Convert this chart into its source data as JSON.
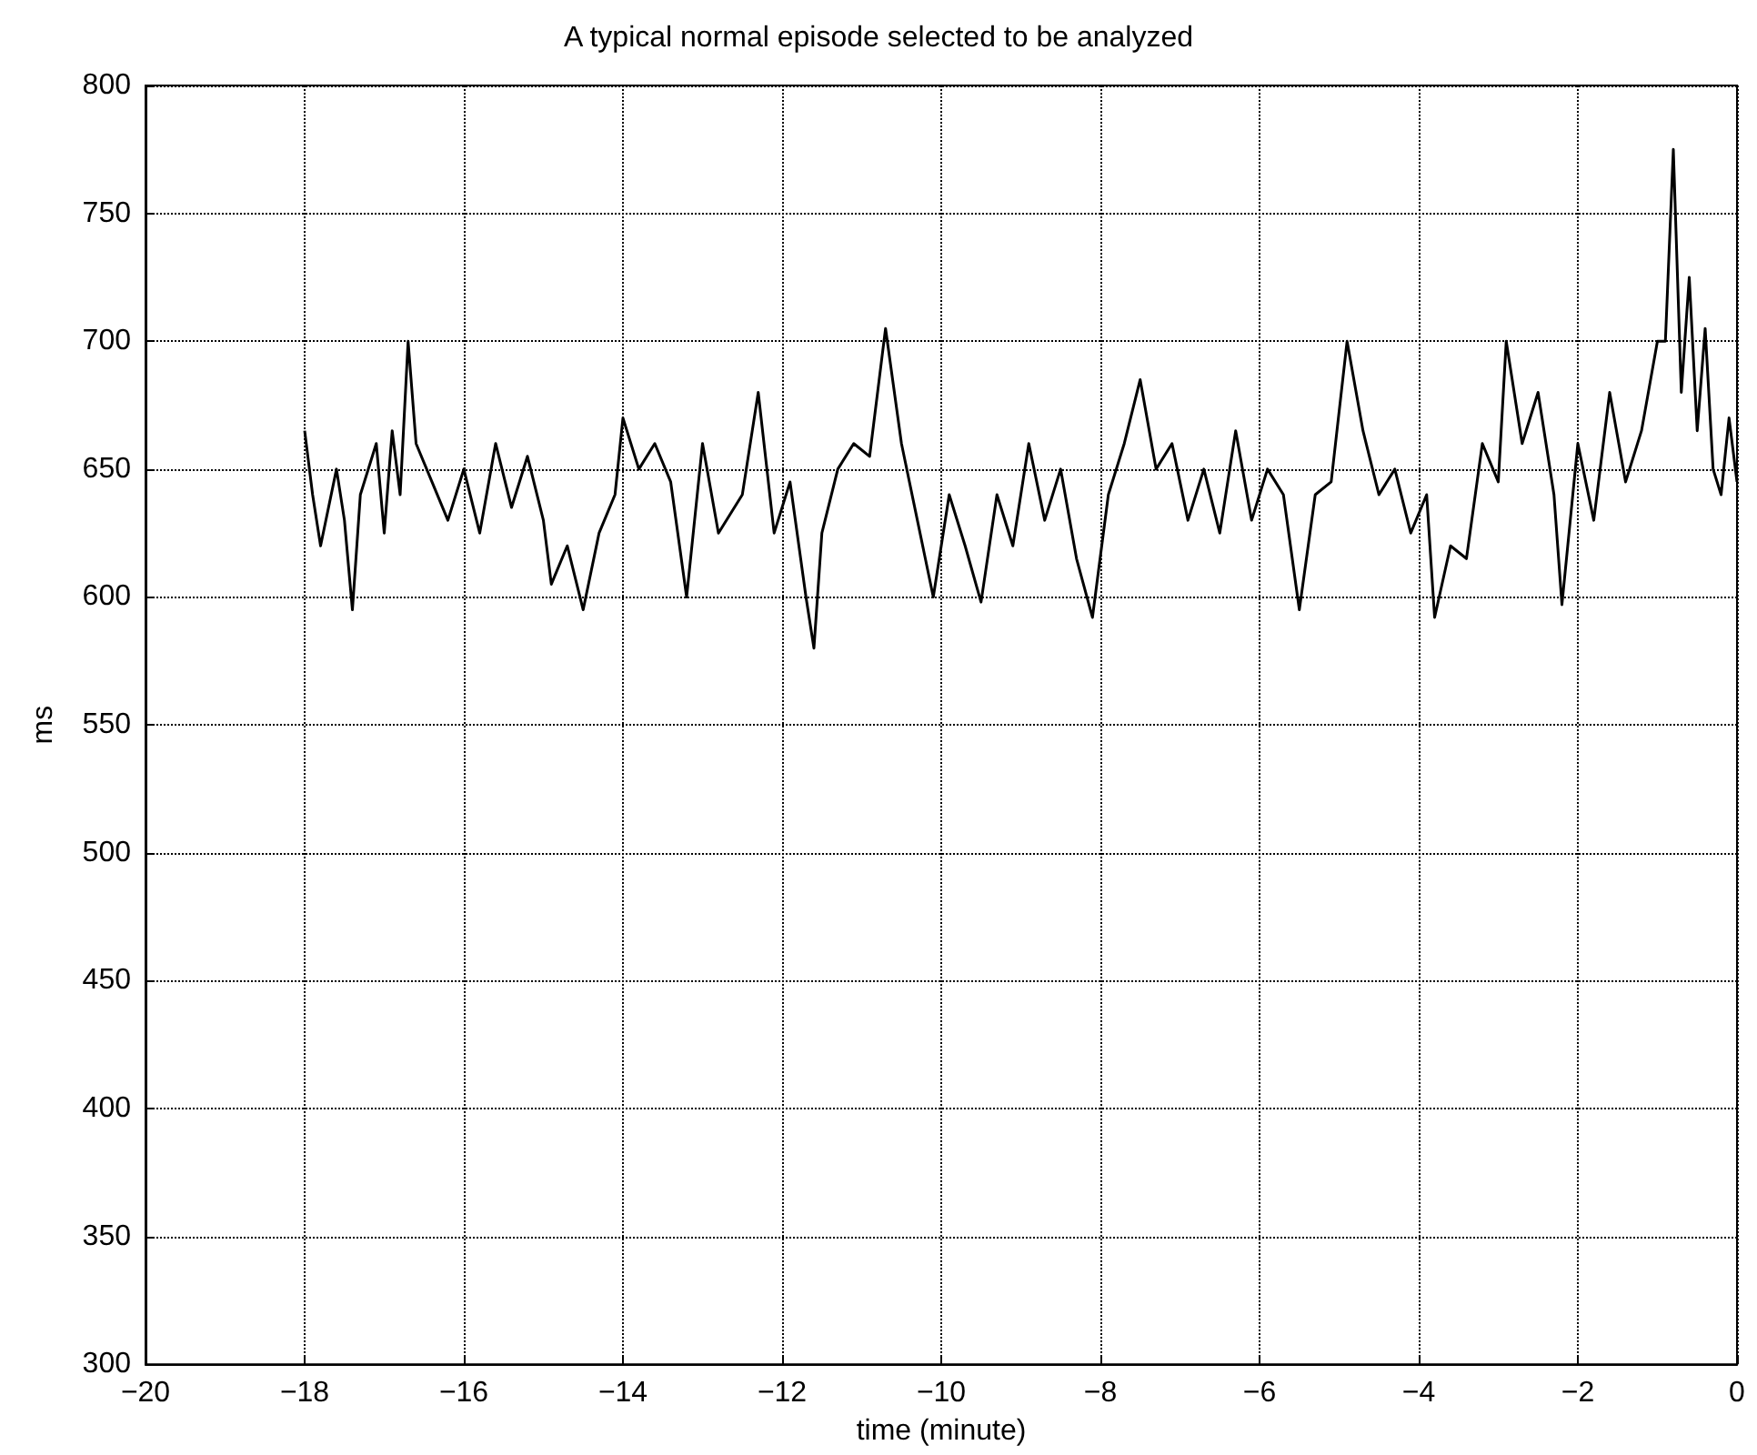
{
  "chart_data": {
    "type": "line",
    "title": "A typical normal episode selected to be analyzed",
    "xlabel": "time (minute)",
    "ylabel": "ms",
    "x": [
      -18,
      -17.9,
      -17.8,
      -17.6,
      -17.5,
      -17.4,
      -17.3,
      -17.1,
      -17.0,
      -16.9,
      -16.8,
      -16.7,
      -16.6,
      -16.4,
      -16.2,
      -16.0,
      -15.8,
      -15.6,
      -15.4,
      -15.2,
      -15.0,
      -14.9,
      -14.7,
      -14.5,
      -14.3,
      -14.1,
      -14.0,
      -13.8,
      -13.6,
      -13.4,
      -13.2,
      -13.0,
      -12.8,
      -12.5,
      -12.3,
      -12.1,
      -11.9,
      -11.7,
      -11.6,
      -11.5,
      -11.3,
      -11.1,
      -10.9,
      -10.7,
      -10.5,
      -10.3,
      -10.1,
      -9.9,
      -9.7,
      -9.5,
      -9.3,
      -9.1,
      -8.9,
      -8.7,
      -8.5,
      -8.3,
      -8.1,
      -7.9,
      -7.7,
      -7.5,
      -7.3,
      -7.1,
      -6.9,
      -6.7,
      -6.5,
      -6.3,
      -6.1,
      -5.9,
      -5.7,
      -5.5,
      -5.3,
      -5.1,
      -4.9,
      -4.7,
      -4.5,
      -4.3,
      -4.1,
      -3.9,
      -3.8,
      -3.6,
      -3.4,
      -3.2,
      -3.0,
      -2.9,
      -2.7,
      -2.5,
      -2.3,
      -2.2,
      -2.0,
      -1.8,
      -1.6,
      -1.4,
      -1.2,
      -1.0,
      -0.9,
      -0.8,
      -0.7,
      -0.6,
      -0.5,
      -0.4,
      -0.3,
      -0.2,
      -0.1,
      0
    ],
    "series": [
      {
        "color": "#000000",
        "values": [
          665,
          640,
          620,
          650,
          630,
          595,
          640,
          660,
          625,
          665,
          640,
          700,
          660,
          645,
          630,
          650,
          625,
          660,
          635,
          655,
          630,
          605,
          620,
          595,
          625,
          640,
          670,
          650,
          660,
          645,
          600,
          660,
          625,
          640,
          680,
          625,
          645,
          600,
          580,
          625,
          650,
          660,
          655,
          705,
          660,
          630,
          600,
          640,
          620,
          598,
          640,
          620,
          660,
          630,
          650,
          615,
          592,
          640,
          660,
          685,
          650,
          660,
          630,
          650,
          625,
          665,
          630,
          650,
          640,
          595,
          640,
          645,
          700,
          665,
          640,
          650,
          625,
          640,
          592,
          620,
          615,
          660,
          645,
          700,
          660,
          680,
          640,
          597,
          660,
          630,
          680,
          645,
          665,
          700,
          700,
          775,
          680,
          725,
          665,
          705,
          650,
          640,
          670,
          645
        ]
      }
    ],
    "xlim": [
      -20,
      0
    ],
    "xticks": [
      -20,
      -18,
      -16,
      -14,
      -12,
      -10,
      -8,
      -6,
      -4,
      -2,
      0
    ],
    "ylim": [
      300,
      800
    ],
    "yticks": [
      300,
      350,
      400,
      450,
      500,
      550,
      600,
      650,
      700,
      750,
      800
    ],
    "grid": true,
    "marker": "none",
    "line_style": "solid"
  }
}
